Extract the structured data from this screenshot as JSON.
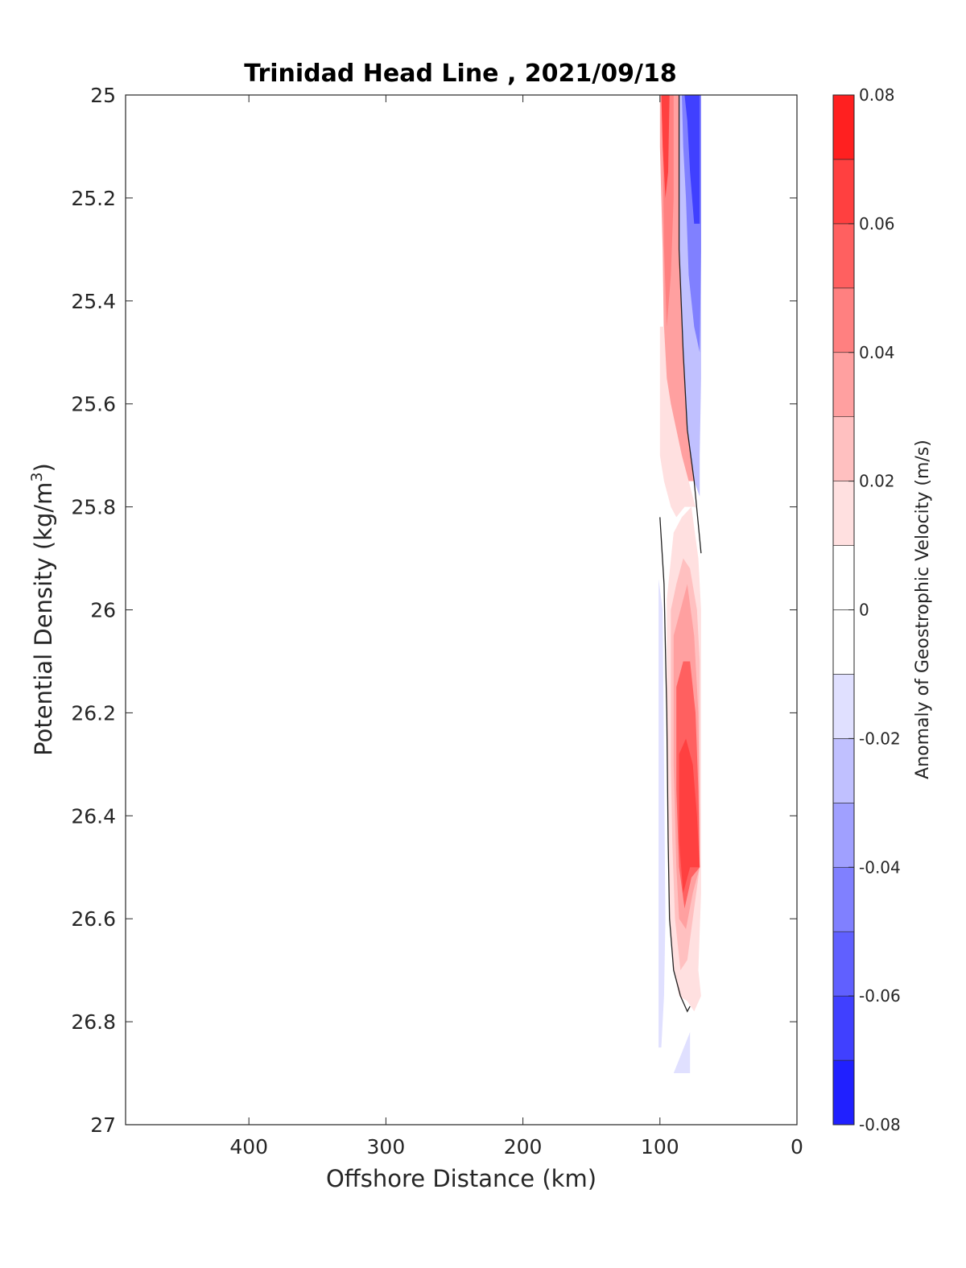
{
  "chart_data": {
    "type": "contour",
    "title": "Trinidad Head Line , 2021/09/18",
    "xlabel": "Offshore Distance (km)",
    "ylabel_main": "Potential Density (kg/m",
    "ylabel_sup": "3",
    "ylabel_end": ")",
    "xlim": [
      490,
      0
    ],
    "x_reversed": true,
    "ylim": [
      25,
      27
    ],
    "y_reversed": true,
    "x_ticks": [
      400,
      300,
      200,
      100,
      0
    ],
    "x_tick_labels": [
      "400",
      "300",
      "200",
      "100",
      "0"
    ],
    "y_ticks": [
      25,
      25.2,
      25.4,
      25.6,
      25.8,
      26,
      26.2,
      26.4,
      26.6,
      26.8,
      27
    ],
    "y_tick_labels": [
      "25",
      "25.2",
      "25.4",
      "25.6",
      "25.8",
      "26",
      "26.2",
      "26.4",
      "26.6",
      "26.8",
      "27"
    ],
    "grid": false,
    "colorbar": {
      "label": "Anomaly of Geostrophic Velocity (m/s)",
      "range": [
        -0.08,
        0.08
      ],
      "levels": [
        -0.08,
        -0.07,
        -0.06,
        -0.05,
        -0.04,
        -0.03,
        -0.02,
        -0.01,
        0,
        0.01,
        0.02,
        0.03,
        0.04,
        0.05,
        0.06,
        0.07,
        0.08
      ],
      "colors": [
        "#0000ff",
        "#2020ff",
        "#4040ff",
        "#6060ff",
        "#8080ff",
        "#a0a0ff",
        "#c0c0ff",
        "#e0e0ff",
        "#ffffff",
        "#ffffff",
        "#ffe0e0",
        "#ffc0c0",
        "#ffa0a0",
        "#ff8080",
        "#ff6060",
        "#ff4040",
        "#ff2020",
        "#ff0000"
      ],
      "tick_values": [
        0.08,
        0.06,
        0.04,
        0.02,
        0,
        -0.02,
        -0.04,
        -0.06,
        -0.08
      ],
      "tick_labels": [
        "0.08",
        "0.06",
        "0.04",
        "0.02",
        "0",
        "-0.02",
        "-0.04",
        "-0.06",
        "-0.08"
      ]
    },
    "zero_contours": [
      {
        "points": [
          [
            86,
            25.0
          ],
          [
            86,
            25.3
          ],
          [
            83,
            25.5
          ],
          [
            80,
            25.65
          ],
          [
            75,
            25.75
          ],
          [
            70,
            25.89
          ]
        ]
      },
      {
        "points": [
          [
            100,
            25.82
          ],
          [
            97,
            25.95
          ],
          [
            95,
            26.2
          ],
          [
            94,
            26.45
          ],
          [
            93,
            26.6
          ],
          [
            90,
            26.7
          ],
          [
            85,
            26.75
          ],
          [
            80,
            26.78
          ],
          [
            78,
            26.77
          ]
        ]
      }
    ],
    "regions": [
      {
        "value": 0.03,
        "points": [
          [
            100,
            25.0
          ],
          [
            86,
            25.0
          ],
          [
            86,
            25.3
          ],
          [
            83,
            25.5
          ],
          [
            80,
            25.65
          ],
          [
            75,
            25.75
          ],
          [
            93,
            25.75
          ],
          [
            96,
            25.7
          ],
          [
            97,
            25.5
          ],
          [
            98,
            25.3
          ],
          [
            100,
            25.1
          ]
        ]
      },
      {
        "value": 0.045,
        "points": [
          [
            99,
            25.0
          ],
          [
            90,
            25.0
          ],
          [
            90,
            25.2
          ],
          [
            92,
            25.35
          ],
          [
            95,
            25.45
          ],
          [
            97,
            25.3
          ],
          [
            98,
            25.1
          ]
        ]
      },
      {
        "value": 0.06,
        "points": [
          [
            99,
            25.0
          ],
          [
            93,
            25.0
          ],
          [
            94,
            25.15
          ],
          [
            96,
            25.2
          ],
          [
            98,
            25.1
          ]
        ]
      },
      {
        "value": 0.015,
        "points": [
          [
            100,
            25.45
          ],
          [
            97,
            25.45
          ],
          [
            95,
            25.55
          ],
          [
            92,
            25.6
          ],
          [
            88,
            25.65
          ],
          [
            84,
            25.7
          ],
          [
            79,
            25.75
          ],
          [
            74,
            25.8
          ],
          [
            82,
            25.8
          ],
          [
            88,
            25.82
          ],
          [
            92,
            25.8
          ],
          [
            97,
            25.75
          ],
          [
            100,
            25.7
          ]
        ]
      },
      {
        "value": 0.015,
        "points": [
          [
            95,
            25.98
          ],
          [
            90,
            25.85
          ],
          [
            84,
            25.82
          ],
          [
            77,
            25.8
          ],
          [
            72,
            25.9
          ],
          [
            70,
            26.0
          ],
          [
            70,
            26.4
          ],
          [
            70,
            26.55
          ],
          [
            72,
            26.7
          ],
          [
            70,
            26.75
          ],
          [
            75,
            26.78
          ],
          [
            80,
            26.76
          ],
          [
            86,
            26.75
          ],
          [
            90,
            26.7
          ],
          [
            93,
            26.6
          ],
          [
            94,
            26.45
          ],
          [
            95,
            26.2
          ]
        ]
      },
      {
        "value": 0.025,
        "points": [
          [
            92,
            26.0
          ],
          [
            88,
            25.95
          ],
          [
            83,
            25.9
          ],
          [
            78,
            25.92
          ],
          [
            73,
            26.0
          ],
          [
            71,
            26.1
          ],
          [
            71,
            26.3
          ],
          [
            71,
            26.5
          ],
          [
            76,
            26.6
          ],
          [
            80,
            26.68
          ],
          [
            85,
            26.7
          ],
          [
            89,
            26.6
          ],
          [
            91,
            26.45
          ],
          [
            92,
            26.3
          ]
        ]
      },
      {
        "value": 0.035,
        "points": [
          [
            90,
            26.05
          ],
          [
            85,
            26.0
          ],
          [
            80,
            25.95
          ],
          [
            75,
            26.05
          ],
          [
            72,
            26.2
          ],
          [
            71,
            26.4
          ],
          [
            71,
            26.5
          ],
          [
            76,
            26.55
          ],
          [
            81,
            26.62
          ],
          [
            86,
            26.6
          ],
          [
            88,
            26.5
          ],
          [
            90,
            26.3
          ]
        ]
      },
      {
        "value": 0.05,
        "points": [
          [
            88,
            26.15
          ],
          [
            83,
            26.1
          ],
          [
            78,
            26.1
          ],
          [
            74,
            26.2
          ],
          [
            72,
            26.35
          ],
          [
            71,
            26.5
          ],
          [
            77,
            26.52
          ],
          [
            82,
            26.58
          ],
          [
            86,
            26.5
          ],
          [
            88,
            26.35
          ]
        ]
      },
      {
        "value": 0.065,
        "points": [
          [
            86,
            26.28
          ],
          [
            81,
            26.25
          ],
          [
            76,
            26.3
          ],
          [
            73,
            26.4
          ],
          [
            71,
            26.5
          ],
          [
            78,
            26.5
          ],
          [
            83,
            26.55
          ],
          [
            86,
            26.45
          ]
        ]
      },
      {
        "value": -0.025,
        "points": [
          [
            86,
            25.0
          ],
          [
            70,
            25.0
          ],
          [
            70,
            25.3
          ],
          [
            70,
            25.55
          ],
          [
            71,
            25.7
          ],
          [
            71,
            25.78
          ],
          [
            75,
            25.75
          ],
          [
            80,
            25.65
          ],
          [
            83,
            25.5
          ],
          [
            86,
            25.3
          ]
        ]
      },
      {
        "value": -0.045,
        "points": [
          [
            84,
            25.0
          ],
          [
            70,
            25.0
          ],
          [
            70,
            25.3
          ],
          [
            71,
            25.5
          ],
          [
            75,
            25.45
          ],
          [
            79,
            25.35
          ],
          [
            81,
            25.2
          ],
          [
            83,
            25.1
          ]
        ]
      },
      {
        "value": -0.065,
        "points": [
          [
            82,
            25.0
          ],
          [
            71,
            25.0
          ],
          [
            71,
            25.25
          ],
          [
            75,
            25.25
          ],
          [
            78,
            25.15
          ],
          [
            80,
            25.05
          ]
        ]
      },
      {
        "value": -0.015,
        "points": [
          [
            101,
            25.94
          ],
          [
            98,
            26.0
          ],
          [
            97,
            26.3
          ],
          [
            96,
            26.6
          ],
          [
            97,
            26.75
          ],
          [
            99,
            26.85
          ],
          [
            101,
            26.85
          ],
          [
            101,
            26.4
          ]
        ]
      },
      {
        "value": -0.015,
        "points": [
          [
            90,
            26.9
          ],
          [
            78,
            26.9
          ],
          [
            78,
            26.82
          ],
          [
            84,
            26.86
          ]
        ]
      }
    ]
  }
}
